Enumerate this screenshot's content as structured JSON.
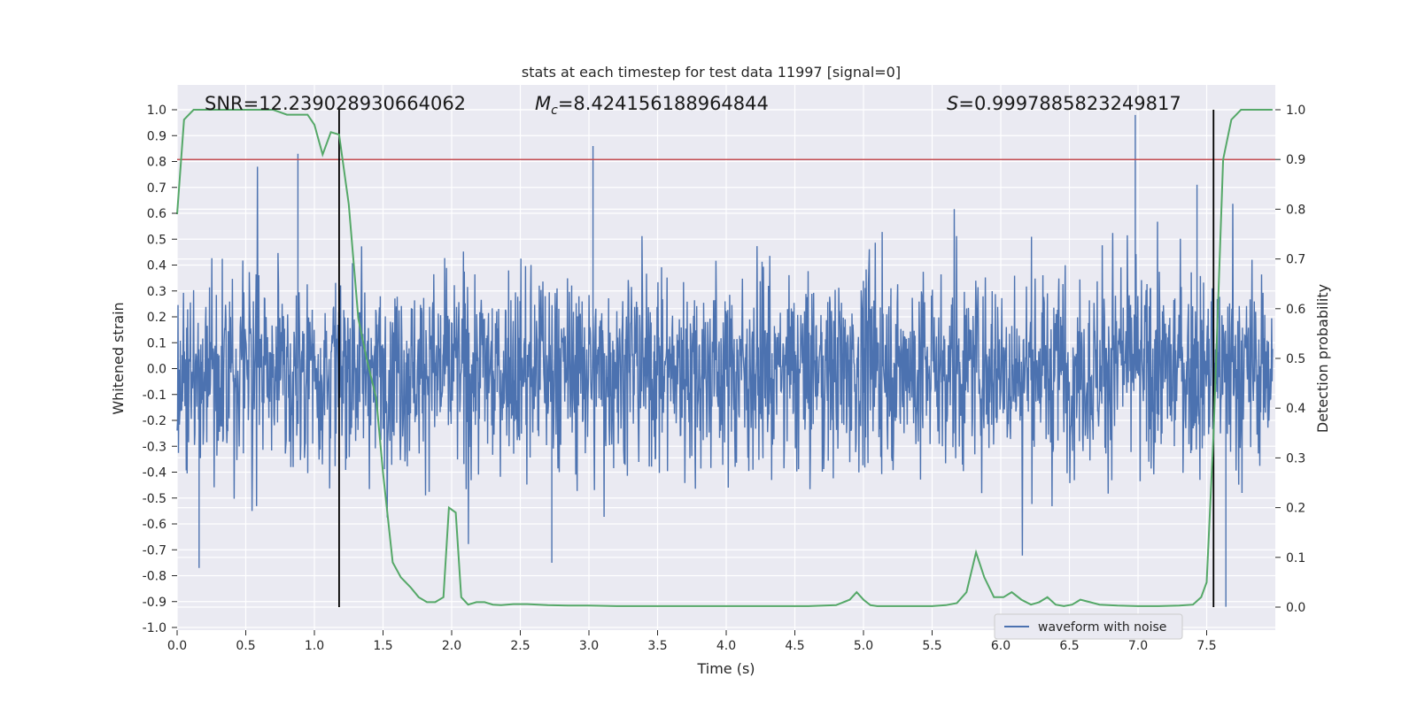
{
  "chart_data": {
    "type": "line",
    "title": "stats at each timestep for test data 11997 [signal=0]",
    "xlabel": "Time (s)",
    "ylabel": "Whitened strain",
    "y2label": "Detection probability",
    "xlim": [
      0,
      8
    ],
    "ylim": [
      -1.0,
      1.0
    ],
    "y2lim": [
      0.0,
      1.0
    ],
    "x_ticks": [
      "0.0",
      "0.5",
      "1.0",
      "1.5",
      "2.0",
      "2.5",
      "3.0",
      "3.5",
      "4.0",
      "4.5",
      "5.0",
      "5.5",
      "6.0",
      "6.5",
      "7.0",
      "7.5"
    ],
    "y_ticks": [
      "1.0",
      "0.9",
      "0.8",
      "0.7",
      "0.6",
      "0.5",
      "0.4",
      "0.3",
      "0.2",
      "0.1",
      "0.0",
      "-0.1",
      "-0.2",
      "-0.3",
      "-0.4",
      "-0.5",
      "-0.6",
      "-0.7",
      "-0.8",
      "-0.9",
      "-1.0"
    ],
    "y2_ticks": [
      "1.0",
      "0.9",
      "0.8",
      "0.7",
      "0.6",
      "0.5",
      "0.4",
      "0.3",
      "0.2",
      "0.1",
      "0.0"
    ],
    "annotations": {
      "snr": "SNR=12.239028930664062",
      "mc_symbol": "M",
      "mc_sub": "c",
      "mc_value": "=8.424156188964844",
      "s_symbol": "S",
      "s_value": "=0.9997885823249817"
    },
    "legend": {
      "label": "waveform with noise",
      "position": "lower-right"
    },
    "threshold": {
      "y2": 0.9,
      "color": "#c44e52"
    },
    "vlines": [
      1.18,
      7.55
    ],
    "grid": true,
    "colors": {
      "waveform": "#4c72b0",
      "probability": "#55a868",
      "threshold": "#c44e52",
      "vline": "#000000",
      "background": "#eaeaf2"
    },
    "probability_series": {
      "name": "",
      "x": [
        0.0,
        0.05,
        0.12,
        0.2,
        0.3,
        0.4,
        0.5,
        0.6,
        0.7,
        0.8,
        0.85,
        0.95,
        1.0,
        1.06,
        1.12,
        1.18,
        1.25,
        1.32,
        1.38,
        1.45,
        1.5,
        1.57,
        1.63,
        1.7,
        1.76,
        1.82,
        1.88,
        1.94,
        1.98,
        2.03,
        2.07,
        2.12,
        2.18,
        2.24,
        2.3,
        2.36,
        2.45,
        2.55,
        2.7,
        2.85,
        3.0,
        3.2,
        3.4,
        3.6,
        3.8,
        4.0,
        4.1,
        4.2,
        4.4,
        4.6,
        4.8,
        4.9,
        4.95,
        5.0,
        5.05,
        5.1,
        5.2,
        5.35,
        5.5,
        5.6,
        5.68,
        5.75,
        5.82,
        5.88,
        5.95,
        6.02,
        6.08,
        6.15,
        6.22,
        6.28,
        6.34,
        6.4,
        6.46,
        6.52,
        6.58,
        6.65,
        6.72,
        6.85,
        7.0,
        7.15,
        7.3,
        7.4,
        7.46,
        7.5,
        7.55,
        7.62,
        7.68,
        7.75,
        7.85,
        7.98
      ],
      "values": [
        0.79,
        0.98,
        1.0,
        1.0,
        1.0,
        1.0,
        1.0,
        1.0,
        1.0,
        0.99,
        0.99,
        0.99,
        0.97,
        0.91,
        0.955,
        0.95,
        0.81,
        0.58,
        0.5,
        0.42,
        0.27,
        0.09,
        0.06,
        0.04,
        0.02,
        0.01,
        0.01,
        0.02,
        0.2,
        0.19,
        0.02,
        0.005,
        0.01,
        0.01,
        0.005,
        0.004,
        0.006,
        0.006,
        0.004,
        0.003,
        0.003,
        0.002,
        0.002,
        0.002,
        0.002,
        0.002,
        0.002,
        0.002,
        0.002,
        0.002,
        0.004,
        0.015,
        0.03,
        0.015,
        0.004,
        0.002,
        0.002,
        0.002,
        0.002,
        0.004,
        0.008,
        0.03,
        0.11,
        0.06,
        0.02,
        0.02,
        0.03,
        0.015,
        0.005,
        0.01,
        0.02,
        0.005,
        0.002,
        0.005,
        0.015,
        0.01,
        0.005,
        0.003,
        0.002,
        0.002,
        0.003,
        0.005,
        0.02,
        0.05,
        0.35,
        0.9,
        0.98,
        1.0,
        1.0,
        1.0
      ]
    },
    "waveform_series": {
      "name": "waveform with noise",
      "x_range": [
        0.0,
        7.98
      ],
      "samples": 2400,
      "peak_values": [
        {
          "x": 0.88,
          "y": 0.83
        },
        {
          "x": 3.03,
          "y": 0.86
        },
        {
          "x": 6.98,
          "y": 0.98
        },
        {
          "x": 7.43,
          "y": 0.71
        },
        {
          "x": 0.16,
          "y": -0.77
        },
        {
          "x": 5.2,
          "y": 0.31
        },
        {
          "x": 7.64,
          "y": -0.92
        },
        {
          "x": 2.73,
          "y": -0.75
        }
      ]
    }
  }
}
